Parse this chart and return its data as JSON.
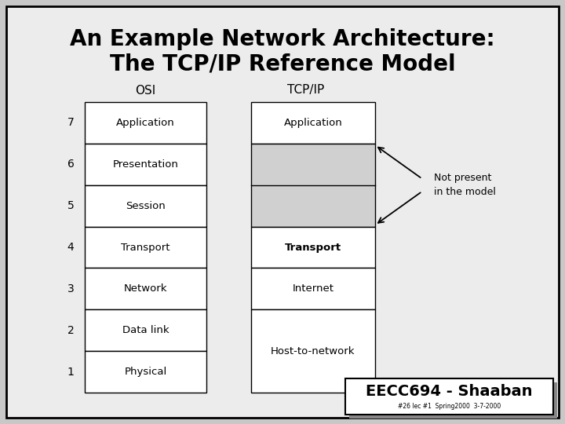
{
  "title_line1": "An Example Network Architecture:",
  "title_line2": "The TCP/IP Reference Model",
  "bg_color": "#c8c8c8",
  "main_bg": "#ececec",
  "box_bg": "#ffffff",
  "shaded_bg": "#d0d0d0",
  "osi_label": "OSI",
  "tcpip_label": "TCP/IP",
  "osi_layers": [
    {
      "num": 7,
      "label": "Application"
    },
    {
      "num": 6,
      "label": "Presentation"
    },
    {
      "num": 5,
      "label": "Session"
    },
    {
      "num": 4,
      "label": "Transport"
    },
    {
      "num": 3,
      "label": "Network"
    },
    {
      "num": 2,
      "label": "Data link"
    },
    {
      "num": 1,
      "label": "Physical"
    }
  ],
  "not_present_text": "Not present\nin the model",
  "footer_text": "EECC694 - Shaaban",
  "footer_sub": "#26 lec #1  Spring2000  3-7-2000"
}
